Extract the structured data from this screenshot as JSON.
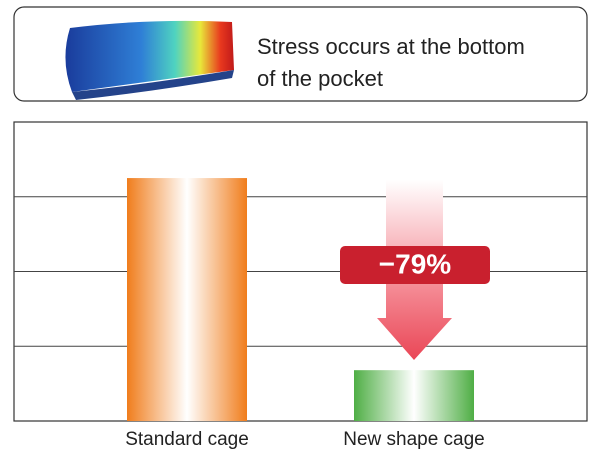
{
  "chart_data": {
    "type": "bar",
    "caption": [
      "Stress occurs at the bottom",
      "of the pocket"
    ],
    "categories": [
      "Standard cage",
      "New shape cage"
    ],
    "values": [
      3.25,
      0.68
    ],
    "colors": [
      "#f07d1c",
      "#4fae45"
    ],
    "annotation": "−79%",
    "annotation_color": "#c9202e",
    "ylim": [
      0,
      4
    ],
    "yticks": [
      0,
      1,
      2,
      3,
      4
    ],
    "grid": true
  }
}
